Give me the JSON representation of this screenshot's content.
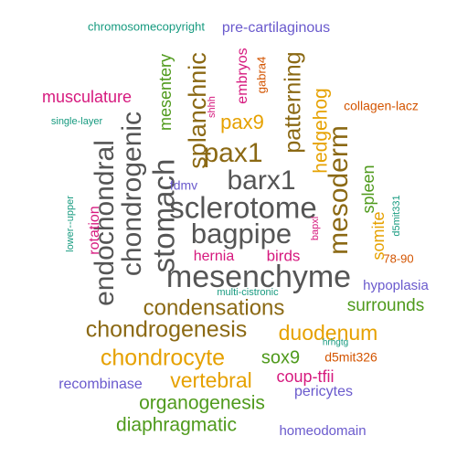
{
  "palette": {
    "gray": "#555555",
    "brown": "#8B6914",
    "gold": "#E6A100",
    "green": "#4F9A1C",
    "magenta": "#D6197E",
    "orange": "#D35400",
    "teal": "#169A7F",
    "purple": "#6A5ACD"
  },
  "words": [
    {
      "text": "mesenchyme",
      "color": "gray"
    },
    {
      "text": "sclerotome",
      "color": "gray"
    },
    {
      "text": "bagpipe",
      "color": "gray"
    },
    {
      "text": "barx1",
      "color": "gray"
    },
    {
      "text": "stomach",
      "color": "gray"
    },
    {
      "text": "chondrogenic",
      "color": "gray"
    },
    {
      "text": "endochondral",
      "color": "gray"
    },
    {
      "text": "mesoderm",
      "color": "brown"
    },
    {
      "text": "chondrogenesis",
      "color": "brown"
    },
    {
      "text": "condensations",
      "color": "brown"
    },
    {
      "text": "pax1",
      "color": "brown"
    },
    {
      "text": "splanchnic",
      "color": "brown"
    },
    {
      "text": "patterning",
      "color": "brown"
    },
    {
      "text": "chondrocyte",
      "color": "gold"
    },
    {
      "text": "duodenum",
      "color": "gold"
    },
    {
      "text": "vertebral",
      "color": "gold"
    },
    {
      "text": "hedgehog",
      "color": "gold"
    },
    {
      "text": "pax9",
      "color": "gold"
    },
    {
      "text": "somite",
      "color": "gold"
    },
    {
      "text": "organogenesis",
      "color": "green"
    },
    {
      "text": "diaphragmatic",
      "color": "green"
    },
    {
      "text": "sox9",
      "color": "green"
    },
    {
      "text": "surrounds",
      "color": "green"
    },
    {
      "text": "mesentery",
      "color": "green"
    },
    {
      "text": "spleen",
      "color": "green"
    },
    {
      "text": "musculature",
      "color": "magenta"
    },
    {
      "text": "coup-tfii",
      "color": "magenta"
    },
    {
      "text": "hernia",
      "color": "magenta"
    },
    {
      "text": "birds",
      "color": "magenta"
    },
    {
      "text": "rotation",
      "color": "magenta"
    },
    {
      "text": "embryos",
      "color": "magenta"
    },
    {
      "text": "shhh",
      "color": "magenta"
    },
    {
      "text": "bapxl",
      "color": "magenta"
    },
    {
      "text": "hrhgtg",
      "color": "teal"
    },
    {
      "text": "collagen-lacz",
      "color": "orange"
    },
    {
      "text": "d5mit326",
      "color": "orange"
    },
    {
      "text": "78-90",
      "color": "orange"
    },
    {
      "text": "gabra4",
      "color": "orange"
    },
    {
      "text": "chromosomecopyright",
      "color": "teal"
    },
    {
      "text": "single-layer",
      "color": "teal"
    },
    {
      "text": "lower--upper",
      "color": "teal"
    },
    {
      "text": "multi-cistronic",
      "color": "teal"
    },
    {
      "text": "d5mit331",
      "color": "teal"
    },
    {
      "text": "pre-cartilaginous",
      "color": "purple"
    },
    {
      "text": "fdmv",
      "color": "purple"
    },
    {
      "text": "hypoplasia",
      "color": "purple"
    },
    {
      "text": "recombinase",
      "color": "purple"
    },
    {
      "text": "pericytes",
      "color": "purple"
    },
    {
      "text": "homeodomain",
      "color": "purple"
    }
  ]
}
